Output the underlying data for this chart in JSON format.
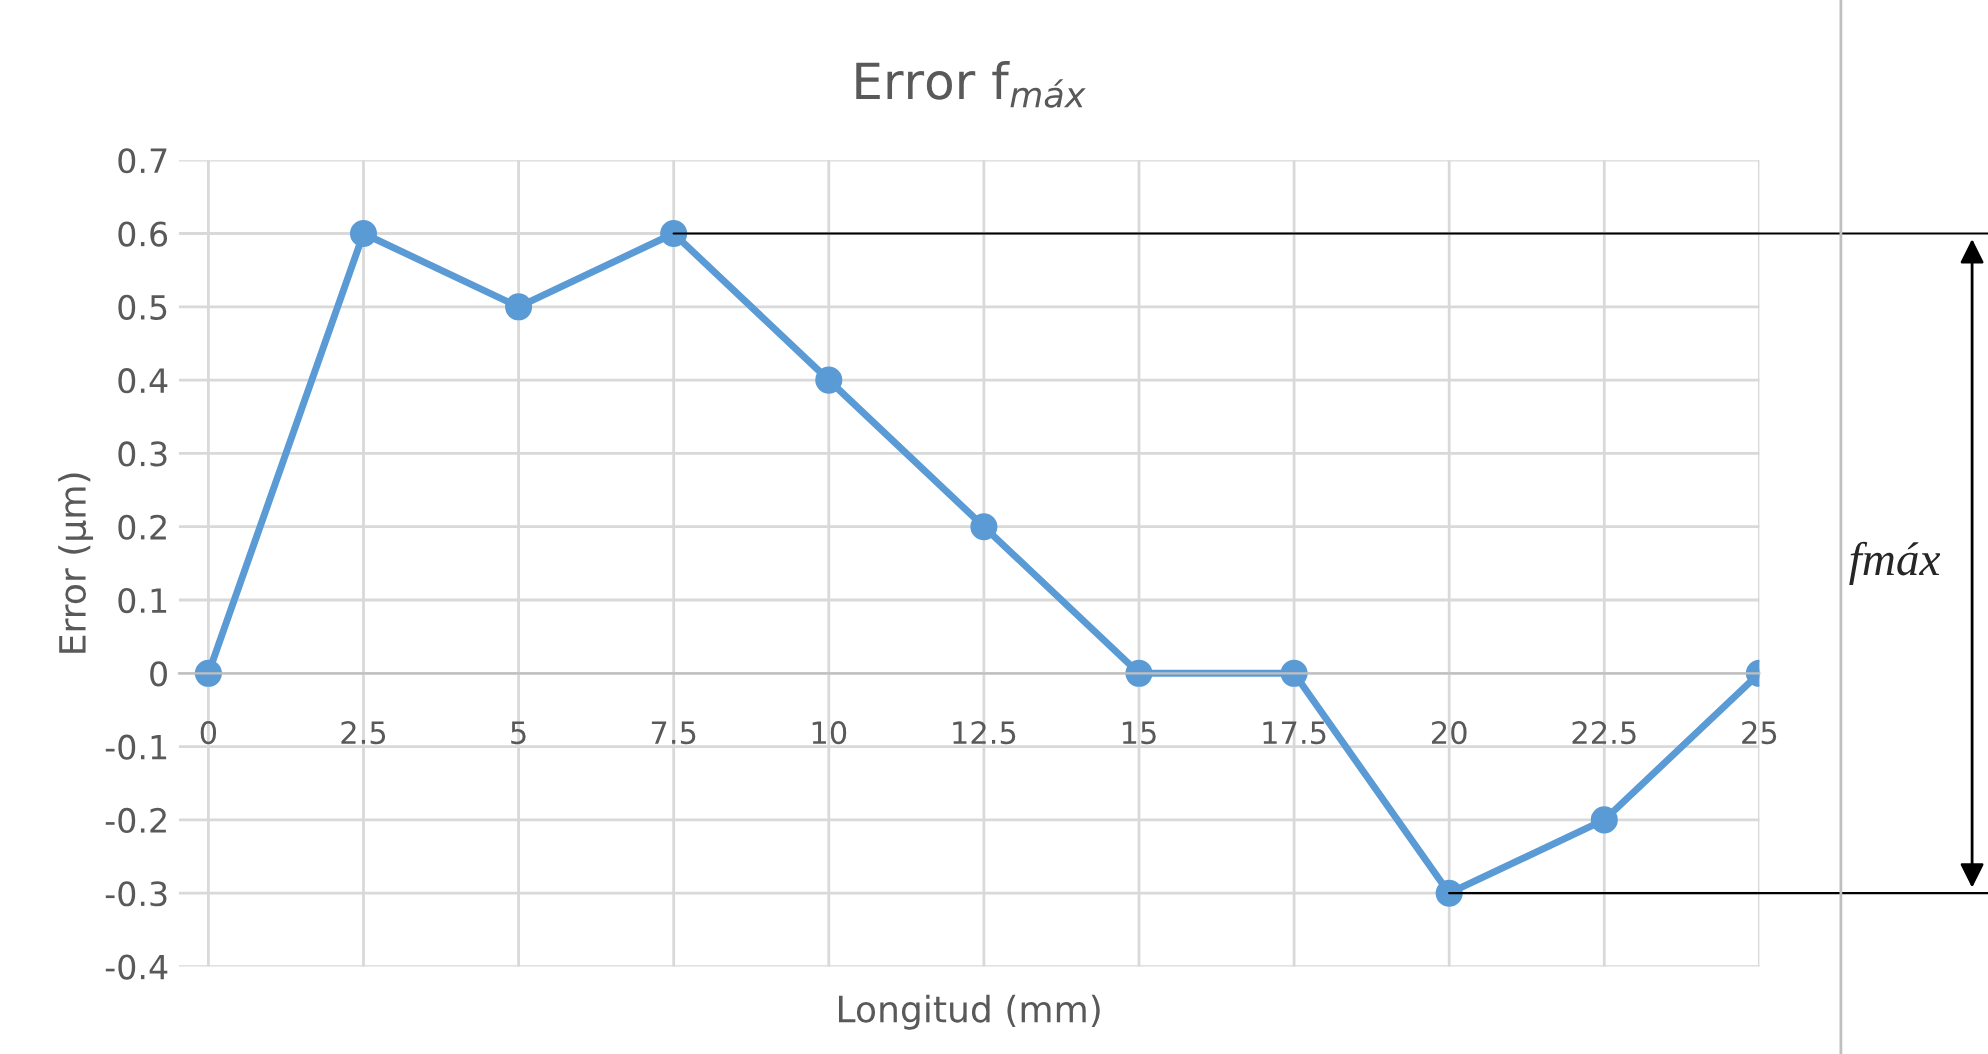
{
  "chart_data": {
    "type": "line",
    "title": "Error f$_{máx}$",
    "xlabel": "Longitud (mm)",
    "ylabel": "Error (µm)",
    "categories": [
      "0",
      "2.5",
      "5",
      "7.5",
      "10",
      "12.5",
      "15",
      "17.5",
      "20",
      "22.5",
      "25"
    ],
    "series": [
      {
        "color": "#5b9bd5",
        "values": [
          0,
          0.6,
          0.5,
          0.6,
          0.4,
          0.2,
          0,
          0,
          -0.3,
          -0.2,
          0
        ]
      }
    ],
    "ylim": [
      -0.4,
      0.7
    ],
    "yticks": [
      -0.4,
      -0.3,
      -0.2,
      -0.1,
      0,
      0.1,
      0.2,
      0.3,
      0.4,
      0.5,
      0.6,
      0.7
    ],
    "grid": true,
    "marker": "circle",
    "line_style": "solid",
    "ref_lines": [
      {
        "axis": "y",
        "value": 0.6,
        "color": "#000000"
      },
      {
        "axis": "y",
        "value": -0.3,
        "color": "#000000"
      }
    ],
    "annotations": [
      "fmáx"
    ]
  }
}
